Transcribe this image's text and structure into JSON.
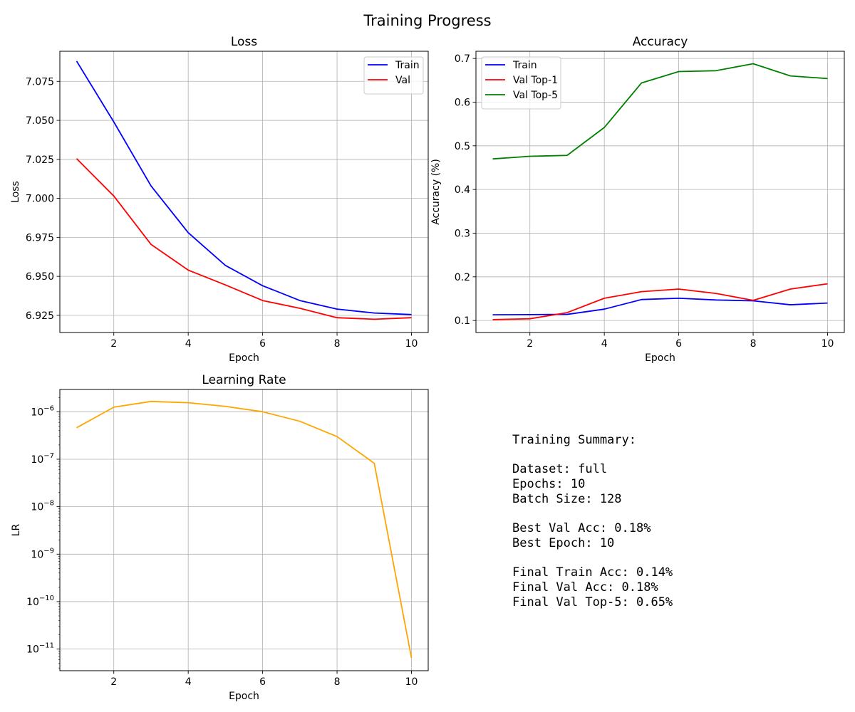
{
  "figure": {
    "title": "Training Progress"
  },
  "chart_data": [
    {
      "type": "line",
      "title": "Loss",
      "xlabel": "Epoch",
      "ylabel": "Loss",
      "x": [
        1,
        2,
        3,
        4,
        5,
        6,
        7,
        8,
        9,
        10
      ],
      "xlim": [
        0.55,
        10.45
      ],
      "ylim": [
        6.914,
        7.0943
      ],
      "xticks": [
        2,
        4,
        6,
        8,
        10
      ],
      "yticks": [
        6.925,
        6.95,
        6.975,
        7.0,
        7.025,
        7.05,
        7.075
      ],
      "ytick_labels": [
        "6.925",
        "6.950",
        "6.975",
        "7.000",
        "7.025",
        "7.050",
        "7.075"
      ],
      "grid": true,
      "legend": "upper right",
      "series": [
        {
          "name": "Train",
          "color": "#0000ff",
          "values": [
            7.088,
            7.049,
            7.008,
            6.978,
            6.957,
            6.944,
            6.9345,
            6.929,
            6.9265,
            6.9255
          ]
        },
        {
          "name": "Val",
          "color": "#ff0000",
          "values": [
            7.0255,
            7.0015,
            6.9705,
            6.954,
            6.9445,
            6.9345,
            6.9295,
            6.9235,
            6.9225,
            6.9235
          ]
        }
      ]
    },
    {
      "type": "line",
      "title": "Accuracy",
      "xlabel": "Epoch",
      "ylabel": "Accuracy (%)",
      "x": [
        1,
        2,
        3,
        4,
        5,
        6,
        7,
        8,
        9,
        10
      ],
      "xlim": [
        0.55,
        10.45
      ],
      "ylim": [
        0.0725,
        0.7165
      ],
      "xticks": [
        2,
        4,
        6,
        8,
        10
      ],
      "yticks": [
        0.1,
        0.2,
        0.3,
        0.4,
        0.5,
        0.6,
        0.7
      ],
      "ytick_labels": [
        "0.1",
        "0.2",
        "0.3",
        "0.4",
        "0.5",
        "0.6",
        "0.7"
      ],
      "grid": true,
      "legend": "upper left",
      "series": [
        {
          "name": "Train",
          "color": "#0000ff",
          "values": [
            0.113,
            0.1135,
            0.114,
            0.126,
            0.148,
            0.151,
            0.147,
            0.145,
            0.136,
            0.14
          ]
        },
        {
          "name": "Val Top-1",
          "color": "#ff0000",
          "values": [
            0.102,
            0.104,
            0.118,
            0.151,
            0.166,
            0.172,
            0.162,
            0.146,
            0.172,
            0.184
          ]
        },
        {
          "name": "Val Top-5",
          "color": "#008000",
          "values": [
            0.47,
            0.476,
            0.478,
            0.542,
            0.644,
            0.67,
            0.672,
            0.688,
            0.66,
            0.654
          ]
        }
      ]
    },
    {
      "type": "line",
      "title": "Learning Rate",
      "xlabel": "Epoch",
      "ylabel": "LR",
      "x": [
        1,
        2,
        3,
        4,
        5,
        6,
        7,
        8,
        9,
        10
      ],
      "xlim": [
        0.55,
        10.45
      ],
      "yscale": "log",
      "ylim": [
        3.5e-12,
        2.95e-06
      ],
      "xticks": [
        2,
        4,
        6,
        8,
        10
      ],
      "yticks": [
        1e-11,
        1e-10,
        1e-09,
        1e-08,
        1e-07,
        1e-06
      ],
      "ytick_base": [
        "10",
        "10",
        "10",
        "10",
        "10",
        "10"
      ],
      "ytick_exp": [
        "−11",
        "−10",
        "−9",
        "−8",
        "−7",
        "−6"
      ],
      "grid": true,
      "series": [
        {
          "color": "#ffa500",
          "values": [
            4.6e-07,
            1.25e-06,
            1.65e-06,
            1.55e-06,
            1.3e-06,
            1e-06,
            6.3e-07,
            3e-07,
            8.2e-08,
            6.5e-12
          ]
        }
      ]
    }
  ],
  "summary": {
    "lines": [
      "Training Summary:",
      "",
      "Dataset: full",
      "Epochs: 10",
      "Batch Size: 128",
      "",
      "Best Val Acc: 0.18%",
      "Best Epoch: 10",
      "",
      "Final Train Acc: 0.14%",
      "Final Val Acc: 0.18%",
      "Final Val Top-5: 0.65%"
    ]
  }
}
